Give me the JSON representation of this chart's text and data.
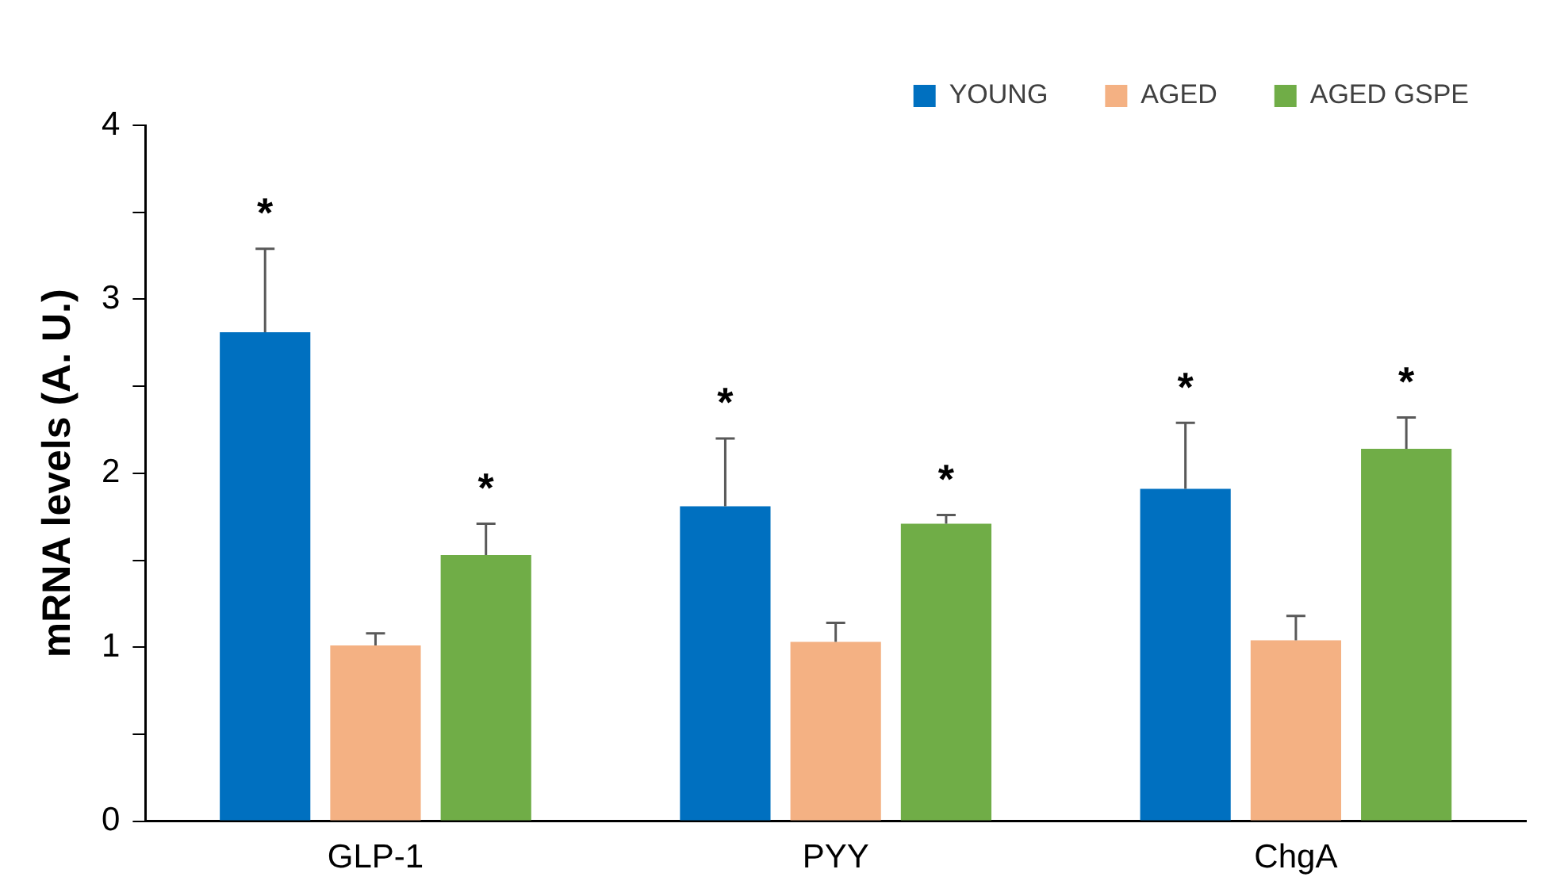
{
  "chart_data": {
    "type": "bar",
    "ylabel": "mRNA levels (A. U.)",
    "categories": [
      "GLP-1",
      "PYY",
      "ChgA"
    ],
    "series": [
      {
        "name": "YOUNG",
        "color": "#0070c0",
        "values": [
          2.81,
          1.81,
          1.91
        ],
        "errors": [
          0.48,
          0.39,
          0.38
        ],
        "value_labels": [
          "*",
          "*",
          "*"
        ]
      },
      {
        "name": "AGED",
        "color": "#f4b183",
        "values": [
          1.01,
          1.03,
          1.04
        ],
        "errors": [
          0.07,
          0.11,
          0.14
        ]
      },
      {
        "name": "AGED GSPE",
        "color": "#70ad47",
        "values": [
          1.53,
          1.71,
          2.14
        ],
        "errors": [
          0.18,
          0.05,
          0.18
        ],
        "value_labels": [
          "*",
          "*",
          "*"
        ]
      }
    ],
    "ylim": [
      0,
      4
    ],
    "yticks": [
      0,
      {
        "value": 0.5,
        "label": null
      },
      1,
      {
        "value": 1.5,
        "label": null
      },
      2,
      {
        "value": 2.5,
        "label": null
      },
      3,
      {
        "value": 3.5,
        "label": null
      },
      4
    ],
    "grid": false,
    "legend": "top right"
  }
}
